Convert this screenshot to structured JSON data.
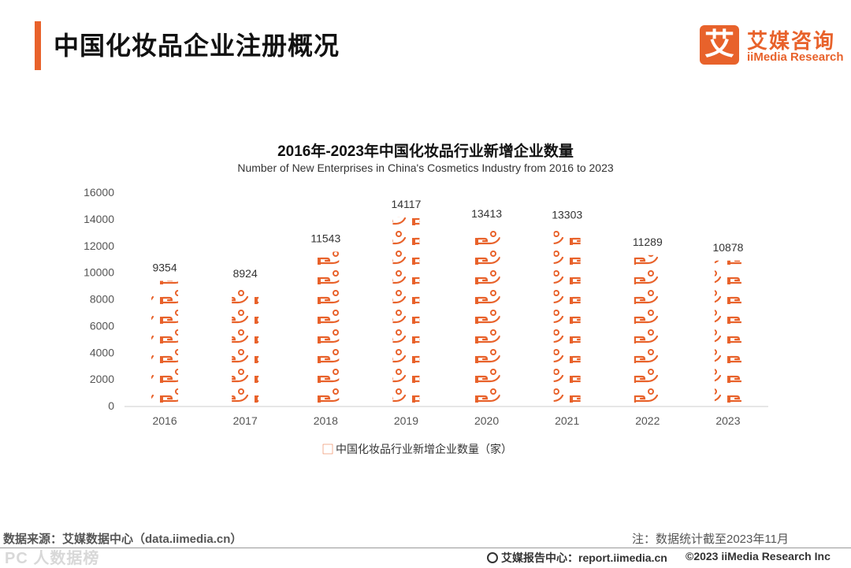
{
  "header": {
    "title": "中国化妆品企业注册概况"
  },
  "logo": {
    "mark": "艾",
    "name_cn": "艾媒咨询",
    "name_en": "iiMedia Research"
  },
  "colors": {
    "accent": "#e8622b",
    "axis_text": "#555555"
  },
  "chart_data": {
    "type": "bar",
    "title": "2016年-2023年中国化妆品行业新增企业数量",
    "subtitle": "Number of New Enterprises in China's Cosmetics Industry from 2016 to 2023",
    "categories": [
      "2016",
      "2017",
      "2018",
      "2019",
      "2020",
      "2021",
      "2022",
      "2023"
    ],
    "series": [
      {
        "name": "中国化妆品行业新增企业数量（家）",
        "values": [
          9354,
          8924,
          11543,
          14117,
          13413,
          13303,
          11289,
          10878
        ]
      }
    ],
    "ylim": [
      0,
      16000
    ],
    "yticks": [
      0,
      2000,
      4000,
      6000,
      8000,
      10000,
      12000,
      14000,
      16000
    ],
    "data_labels": [
      "9354",
      "8924",
      "11543",
      "14117",
      "13413",
      "13303",
      "11289",
      "10878"
    ],
    "legend_position": "bottom",
    "xlabel": "",
    "ylabel": ""
  },
  "footer": {
    "source": "数据来源：艾媒数据中心（data.iimedia.cn）",
    "note": "注：数据统计截至2023年11月",
    "report": "艾媒报告中心：report.iimedia.cn",
    "copyright": "©2023  iiMedia Research  Inc",
    "watermark": "PC   人数据榜"
  }
}
